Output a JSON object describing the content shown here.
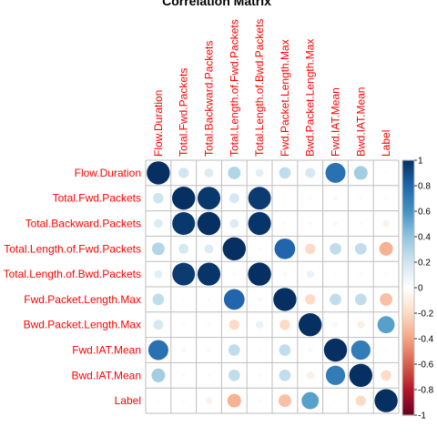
{
  "chart_data": {
    "type": "heatmap",
    "title": "Correlation Matrix",
    "variables": [
      "Flow.Duration",
      "Total.Fwd.Packets",
      "Total.Backward.Packets",
      "Total.Length.of.Fwd.Packets",
      "Total.Length.of.Bwd.Packets",
      "Fwd.Packet.Length.Max",
      "Bwd.Packet.Length.Max",
      "Fwd.IAT.Mean",
      "Bwd.IAT.Mean",
      "Label"
    ],
    "matrix": [
      [
        1.0,
        0.2,
        0.15,
        0.3,
        0.12,
        0.25,
        0.18,
        0.75,
        0.35,
        0.02
      ],
      [
        0.2,
        1.0,
        0.97,
        0.18,
        0.96,
        0.02,
        0.03,
        0.05,
        0.03,
        -0.03
      ],
      [
        0.15,
        0.97,
        1.0,
        0.15,
        0.98,
        0.03,
        0.03,
        0.04,
        0.03,
        -0.08
      ],
      [
        0.3,
        0.18,
        0.15,
        1.0,
        0.03,
        0.8,
        -0.2,
        0.25,
        0.25,
        -0.35
      ],
      [
        0.12,
        0.96,
        0.98,
        0.03,
        1.0,
        0.04,
        0.1,
        0.02,
        0.03,
        -0.03
      ],
      [
        0.25,
        0.02,
        0.03,
        0.8,
        0.04,
        1.0,
        -0.2,
        0.25,
        0.25,
        -0.3
      ],
      [
        0.18,
        0.03,
        0.03,
        -0.2,
        0.1,
        -0.2,
        1.0,
        0.05,
        -0.1,
        0.55
      ],
      [
        0.75,
        0.05,
        0.04,
        0.25,
        0.02,
        0.25,
        0.05,
        1.0,
        0.7,
        0.02
      ],
      [
        0.35,
        0.03,
        0.03,
        0.25,
        0.03,
        0.25,
        -0.1,
        0.7,
        1.0,
        -0.2
      ],
      [
        0.02,
        -0.03,
        -0.08,
        -0.35,
        -0.03,
        -0.3,
        0.55,
        0.02,
        -0.2,
        1.0
      ]
    ],
    "colorbar": {
      "min": -1,
      "max": 1,
      "ticks": [
        "1",
        "0.8",
        "0.6",
        "0.4",
        "0.2",
        "0",
        "-0.2",
        "-0.4",
        "-0.6",
        "-0.8",
        "-1"
      ]
    },
    "colors": {
      "negative_end": "#67001f",
      "neutral": "#ffffff",
      "positive_end": "#053061",
      "label_color": "#ff0000",
      "grid_color": "#bebebe"
    }
  }
}
